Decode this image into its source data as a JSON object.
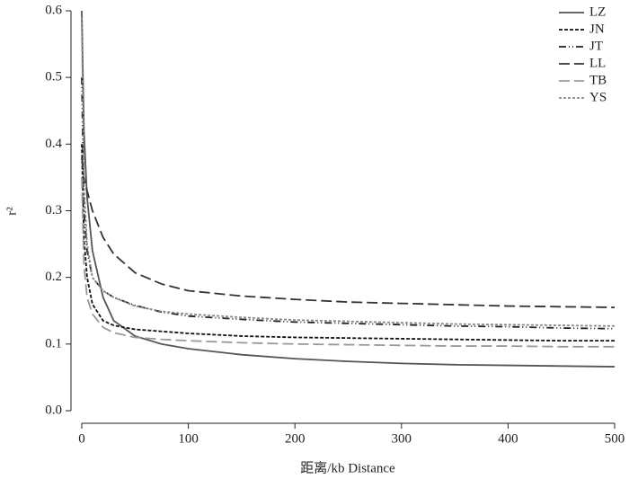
{
  "chart_data": {
    "type": "line",
    "xlabel": "距离/kb Distance",
    "ylabel": "r²",
    "x": [
      0,
      2,
      5,
      10,
      20,
      30,
      50,
      75,
      100,
      150,
      200,
      250,
      300,
      350,
      400,
      450,
      500
    ],
    "series": [
      {
        "name": "LZ",
        "color": "#555555",
        "dash": "",
        "values": [
          0.6,
          0.42,
          0.32,
          0.24,
          0.17,
          0.135,
          0.112,
          0.1,
          0.093,
          0.084,
          0.078,
          0.074,
          0.071,
          0.069,
          0.068,
          0.067,
          0.066
        ]
      },
      {
        "name": "JN",
        "color": "#111111",
        "dash": "4 2",
        "values": [
          0.4,
          0.26,
          0.2,
          0.16,
          0.135,
          0.128,
          0.122,
          0.119,
          0.116,
          0.112,
          0.11,
          0.109,
          0.108,
          0.107,
          0.106,
          0.105,
          0.105
        ]
      },
      {
        "name": "JT",
        "color": "#222222",
        "dash": "8 3 1 3 1 3",
        "values": [
          0.5,
          0.3,
          0.24,
          0.2,
          0.18,
          0.17,
          0.158,
          0.148,
          0.142,
          0.137,
          0.133,
          0.131,
          0.129,
          0.127,
          0.126,
          0.124,
          0.123
        ]
      },
      {
        "name": "LL",
        "color": "#333333",
        "dash": "12 5",
        "values": [
          0.38,
          0.35,
          0.33,
          0.3,
          0.26,
          0.235,
          0.207,
          0.19,
          0.18,
          0.172,
          0.167,
          0.163,
          0.161,
          0.159,
          0.157,
          0.156,
          0.155
        ]
      },
      {
        "name": "TB",
        "color": "#999999",
        "dash": "12 5",
        "values": [
          0.35,
          0.22,
          0.17,
          0.145,
          0.125,
          0.117,
          0.11,
          0.107,
          0.105,
          0.102,
          0.1,
          0.099,
          0.098,
          0.097,
          0.097,
          0.096,
          0.096
        ]
      },
      {
        "name": "YS",
        "color": "#888888",
        "dash": "3 2",
        "values": [
          0.59,
          0.34,
          0.25,
          0.2,
          0.18,
          0.17,
          0.157,
          0.149,
          0.145,
          0.14,
          0.136,
          0.134,
          0.132,
          0.13,
          0.129,
          0.128,
          0.127
        ]
      }
    ],
    "xlim": [
      0,
      500
    ],
    "xticks": [
      0,
      100,
      200,
      300,
      400,
      500
    ],
    "ylim": [
      0,
      0.6
    ],
    "yticks": [
      {
        "value": 0,
        "label": "0.0"
      },
      0.1,
      0.2,
      0.3,
      0.4,
      0.5,
      0.6
    ],
    "legend": "top-right"
  }
}
